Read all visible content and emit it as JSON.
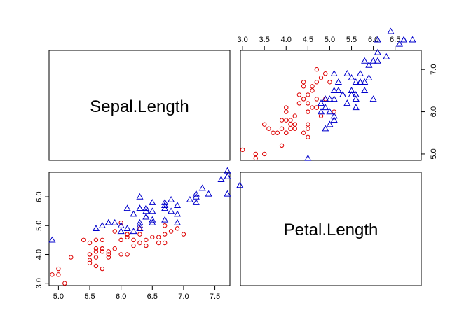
{
  "chart_data": {
    "type": "scatter-matrix",
    "variables": [
      "Sepal.Length",
      "Petal.Length"
    ],
    "sepal_length_axis": {
      "range": [
        4.85,
        7.74
      ],
      "ticks": [
        "5.0",
        "5.5",
        "6.0",
        "6.5",
        "7.0",
        "7.5"
      ],
      "tick_values": [
        5.0,
        5.5,
        6.0,
        6.5,
        7.0,
        7.5
      ]
    },
    "petal_length_axis": {
      "range": [
        2.95,
        7.1
      ],
      "ticks": [
        "3.0",
        "3.5",
        "4.0",
        "4.5",
        "5.0",
        "5.5",
        "6.0",
        "6.5"
      ],
      "tick_values": [
        3.0,
        3.5,
        4.0,
        4.5,
        5.0,
        5.5,
        6.0,
        6.5
      ]
    },
    "petal_length_left_ticks": [
      "3.0",
      "4.0",
      "5.0",
      "6.0"
    ],
    "petal_length_left_tick_values": [
      3.0,
      4.0,
      5.0,
      6.0
    ],
    "sepal_length_right_ticks": [
      "5.0",
      "6.0",
      "7.0"
    ],
    "sepal_length_right_tick_values": [
      5.0,
      6.0,
      7.0
    ],
    "series": [
      {
        "color": "#dd0000",
        "marker": "circle",
        "points": [
          [
            7.0,
            4.7
          ],
          [
            6.4,
            4.5
          ],
          [
            6.9,
            4.9
          ],
          [
            5.5,
            4.0
          ],
          [
            6.5,
            4.6
          ],
          [
            5.7,
            4.5
          ],
          [
            6.3,
            4.7
          ],
          [
            4.9,
            3.3
          ],
          [
            6.6,
            4.6
          ],
          [
            5.2,
            3.9
          ],
          [
            5.0,
            3.5
          ],
          [
            5.9,
            4.2
          ],
          [
            6.0,
            4.0
          ],
          [
            6.1,
            4.7
          ],
          [
            5.6,
            3.6
          ],
          [
            6.7,
            4.4
          ],
          [
            5.6,
            4.5
          ],
          [
            5.8,
            4.1
          ],
          [
            6.2,
            4.5
          ],
          [
            5.6,
            3.9
          ],
          [
            5.9,
            4.8
          ],
          [
            6.1,
            4.0
          ],
          [
            6.3,
            4.9
          ],
          [
            6.1,
            4.7
          ],
          [
            6.4,
            4.3
          ],
          [
            6.6,
            4.4
          ],
          [
            6.8,
            4.8
          ],
          [
            6.7,
            5.0
          ],
          [
            6.0,
            4.5
          ],
          [
            5.7,
            3.5
          ],
          [
            5.5,
            3.8
          ],
          [
            5.5,
            3.7
          ],
          [
            5.8,
            3.9
          ],
          [
            6.0,
            5.1
          ],
          [
            5.4,
            4.5
          ],
          [
            6.0,
            4.5
          ],
          [
            6.7,
            4.7
          ],
          [
            6.3,
            4.4
          ],
          [
            5.6,
            4.1
          ],
          [
            5.5,
            4.0
          ],
          [
            5.5,
            4.4
          ],
          [
            6.1,
            4.6
          ],
          [
            5.8,
            4.0
          ],
          [
            5.0,
            3.3
          ],
          [
            5.6,
            4.2
          ],
          [
            5.7,
            4.2
          ],
          [
            5.7,
            4.2
          ],
          [
            6.2,
            4.3
          ],
          [
            5.1,
            3.0
          ],
          [
            5.7,
            4.1
          ]
        ]
      },
      {
        "color": "#0000cc",
        "marker": "triangle",
        "points": [
          [
            6.3,
            6.0
          ],
          [
            5.8,
            5.1
          ],
          [
            7.1,
            5.9
          ],
          [
            6.3,
            5.6
          ],
          [
            6.5,
            5.8
          ],
          [
            7.6,
            6.6
          ],
          [
            4.9,
            4.5
          ],
          [
            7.3,
            6.3
          ],
          [
            6.7,
            5.8
          ],
          [
            7.2,
            6.1
          ],
          [
            6.5,
            5.1
          ],
          [
            6.4,
            5.3
          ],
          [
            6.8,
            5.5
          ],
          [
            5.7,
            5.0
          ],
          [
            5.8,
            5.1
          ],
          [
            6.4,
            5.3
          ],
          [
            6.5,
            5.5
          ],
          [
            7.7,
            6.7
          ],
          [
            7.7,
            6.9
          ],
          [
            6.0,
            5.0
          ],
          [
            6.9,
            5.7
          ],
          [
            5.6,
            4.9
          ],
          [
            7.7,
            6.7
          ],
          [
            6.3,
            4.9
          ],
          [
            6.7,
            5.7
          ],
          [
            7.2,
            6.0
          ],
          [
            6.2,
            4.8
          ],
          [
            6.1,
            4.9
          ],
          [
            6.4,
            5.6
          ],
          [
            7.2,
            5.8
          ],
          [
            7.4,
            6.1
          ],
          [
            7.9,
            6.4
          ],
          [
            6.4,
            5.6
          ],
          [
            6.3,
            5.1
          ],
          [
            6.1,
            5.6
          ],
          [
            7.7,
            6.1
          ],
          [
            6.3,
            5.6
          ],
          [
            6.4,
            5.5
          ],
          [
            6.0,
            4.8
          ],
          [
            6.9,
            5.4
          ],
          [
            6.7,
            5.6
          ],
          [
            6.9,
            5.1
          ],
          [
            5.8,
            5.1
          ],
          [
            6.8,
            5.9
          ],
          [
            6.7,
            5.7
          ],
          [
            6.7,
            5.2
          ],
          [
            6.3,
            5.0
          ],
          [
            6.5,
            5.2
          ],
          [
            6.2,
            5.4
          ],
          [
            5.9,
            5.1
          ]
        ]
      }
    ]
  }
}
